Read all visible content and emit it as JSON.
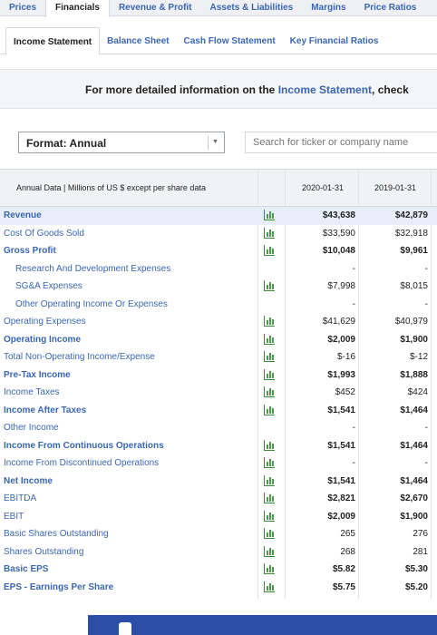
{
  "top_tabs": [
    "Prices",
    "Financials",
    "Revenue & Profit",
    "Assets & Liabilities",
    "Margins",
    "Price Ratios"
  ],
  "sub_tabs": [
    "Income Statement",
    "Balance Sheet",
    "Cash Flow Statement",
    "Key Financial Ratios"
  ],
  "info": {
    "prefix": "For more detailed information on the ",
    "link": "Income Statement",
    "suffix": ", check"
  },
  "format": {
    "label": "Format: Annual"
  },
  "search": {
    "placeholder": "Search for ticker or company name"
  },
  "table": {
    "header_label": "Annual Data | Millions of US $ except per share data",
    "columns": [
      "2020-01-31",
      "2019-01-31"
    ],
    "rows": [
      {
        "label": "Revenue",
        "bold": true,
        "indent": false,
        "chart": true,
        "v1": "$43,638",
        "v2": "$42,879",
        "vbold": true
      },
      {
        "label": "Cost Of Goods Sold",
        "bold": false,
        "indent": false,
        "chart": true,
        "v1": "$33,590",
        "v2": "$32,918",
        "vbold": false
      },
      {
        "label": "Gross Profit",
        "bold": true,
        "indent": false,
        "chart": true,
        "v1": "$10,048",
        "v2": "$9,961",
        "vbold": true
      },
      {
        "label": "Research And Development Expenses",
        "bold": false,
        "indent": true,
        "chart": false,
        "v1": "-",
        "v2": "-",
        "vbold": false
      },
      {
        "label": "SG&A Expenses",
        "bold": false,
        "indent": true,
        "chart": true,
        "v1": "$7,998",
        "v2": "$8,015",
        "vbold": false
      },
      {
        "label": "Other Operating Income Or Expenses",
        "bold": false,
        "indent": true,
        "chart": false,
        "v1": "-",
        "v2": "-",
        "vbold": false
      },
      {
        "label": "Operating Expenses",
        "bold": false,
        "indent": false,
        "chart": true,
        "v1": "$41,629",
        "v2": "$40,979",
        "vbold": false
      },
      {
        "label": "Operating Income",
        "bold": true,
        "indent": false,
        "chart": true,
        "v1": "$2,009",
        "v2": "$1,900",
        "vbold": true
      },
      {
        "label": "Total Non-Operating Income/Expense",
        "bold": false,
        "indent": false,
        "chart": true,
        "v1": "$-16",
        "v2": "$-12",
        "vbold": false
      },
      {
        "label": "Pre-Tax Income",
        "bold": true,
        "indent": false,
        "chart": true,
        "v1": "$1,993",
        "v2": "$1,888",
        "vbold": true
      },
      {
        "label": "Income Taxes",
        "bold": false,
        "indent": false,
        "chart": true,
        "v1": "$452",
        "v2": "$424",
        "vbold": false
      },
      {
        "label": "Income After Taxes",
        "bold": true,
        "indent": false,
        "chart": true,
        "v1": "$1,541",
        "v2": "$1,464",
        "vbold": true
      },
      {
        "label": "Other Income",
        "bold": false,
        "indent": false,
        "chart": false,
        "v1": "-",
        "v2": "-",
        "vbold": false
      },
      {
        "label": "Income From Continuous Operations",
        "bold": true,
        "indent": false,
        "chart": true,
        "v1": "$1,541",
        "v2": "$1,464",
        "vbold": true
      },
      {
        "label": "Income From Discontinued Operations",
        "bold": false,
        "indent": false,
        "chart": true,
        "v1": "-",
        "v2": "-",
        "vbold": false
      },
      {
        "label": "Net Income",
        "bold": true,
        "indent": false,
        "chart": true,
        "v1": "$1,541",
        "v2": "$1,464",
        "vbold": true
      },
      {
        "label": "EBITDA",
        "bold": false,
        "indent": false,
        "chart": true,
        "v1": "$2,821",
        "v2": "$2,670",
        "vbold": true
      },
      {
        "label": "EBIT",
        "bold": false,
        "indent": false,
        "chart": true,
        "v1": "$2,009",
        "v2": "$1,900",
        "vbold": true
      },
      {
        "label": "Basic Shares Outstanding",
        "bold": false,
        "indent": false,
        "chart": true,
        "v1": "265",
        "v2": "276",
        "vbold": false
      },
      {
        "label": "Shares Outstanding",
        "bold": false,
        "indent": false,
        "chart": true,
        "v1": "268",
        "v2": "281",
        "vbold": false
      },
      {
        "label": "Basic EPS",
        "bold": true,
        "indent": false,
        "chart": true,
        "v1": "$5.82",
        "v2": "$5.30",
        "vbold": true
      },
      {
        "label": "EPS - Earnings Per Share",
        "bold": true,
        "indent": false,
        "chart": true,
        "v1": "$5.75",
        "v2": "$5.20",
        "vbold": true
      }
    ]
  },
  "icons": {
    "chart": "bar-chart-icon",
    "select_arrow": "chevron-down-icon"
  },
  "colors": {
    "link": "#3a66b0",
    "highlight_row": "#e8eef8",
    "chart_icon": "#4a9a4a",
    "ad_bg": "#2c4ea8"
  }
}
